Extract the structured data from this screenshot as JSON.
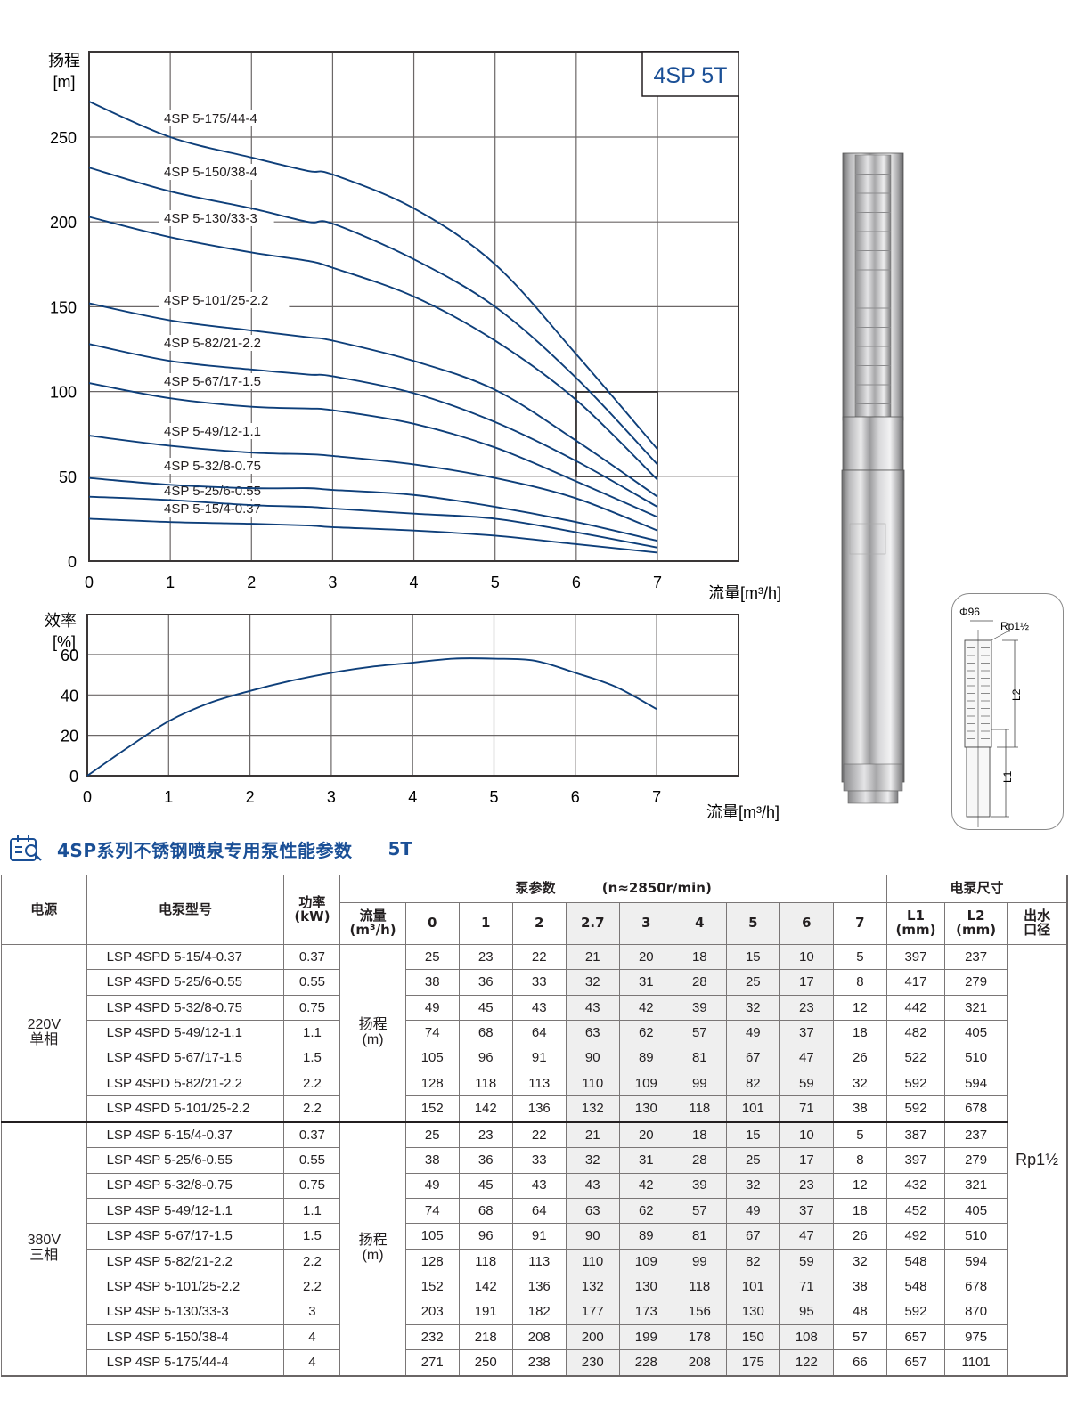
{
  "head_chart": {
    "badge": "4SP 5T",
    "ylabel_line1": "扬程",
    "ylabel_line2": "[m]",
    "xlabel": "流量[m³/h]",
    "x_ticks": [
      "0",
      "1",
      "2",
      "3",
      "4",
      "5",
      "6",
      "7"
    ],
    "y_ticks": [
      "0",
      "50",
      "100",
      "150",
      "200",
      "250"
    ],
    "curve_labels": [
      "4SP 5-175/44-4",
      "4SP 5-150/38-4",
      "4SP 5-130/33-3",
      "4SP 5-101/25-2.2",
      "4SP 5-82/21-2.2",
      "4SP 5-67/17-1.5",
      "4SP 5-49/12-1.1",
      "4SP 5-32/8-0.75",
      "4SP 5-25/6-0.55",
      "4SP 5-15/4-0.37"
    ]
  },
  "eff_chart": {
    "ylabel_line1": "效率",
    "ylabel_line2": "[%]",
    "xlabel": "流量[m³/h]",
    "x_ticks": [
      "0",
      "1",
      "2",
      "3",
      "4",
      "5",
      "6",
      "7"
    ],
    "y_ticks": [
      "0",
      "20",
      "40",
      "60"
    ]
  },
  "chart_data": [
    {
      "type": "line",
      "title": "4SP 5T",
      "xlabel": "流量[m³/h]",
      "ylabel": "扬程 [m]",
      "xlim": [
        0,
        8
      ],
      "ylim": [
        0,
        300
      ],
      "grid": true,
      "x": [
        0,
        1,
        2,
        2.7,
        3,
        4,
        5,
        6,
        7
      ],
      "series": [
        {
          "name": "4SP 5-175/44-4",
          "values": [
            271,
            250,
            238,
            230,
            228,
            208,
            175,
            122,
            66
          ]
        },
        {
          "name": "4SP 5-150/38-4",
          "values": [
            232,
            218,
            208,
            200,
            199,
            178,
            150,
            108,
            57
          ]
        },
        {
          "name": "4SP 5-130/33-3",
          "values": [
            203,
            191,
            182,
            177,
            173,
            156,
            130,
            95,
            48
          ]
        },
        {
          "name": "4SP 5-101/25-2.2",
          "values": [
            152,
            142,
            136,
            132,
            130,
            118,
            101,
            71,
            38
          ]
        },
        {
          "name": "4SP 5-82/21-2.2",
          "values": [
            128,
            118,
            113,
            110,
            109,
            99,
            82,
            59,
            32
          ]
        },
        {
          "name": "4SP 5-67/17-1.5",
          "values": [
            105,
            96,
            91,
            90,
            89,
            81,
            67,
            47,
            26
          ]
        },
        {
          "name": "4SP 5-49/12-1.1",
          "values": [
            74,
            68,
            64,
            63,
            62,
            57,
            49,
            37,
            18
          ]
        },
        {
          "name": "4SP 5-32/8-0.75",
          "values": [
            49,
            45,
            43,
            43,
            42,
            39,
            32,
            23,
            12
          ]
        },
        {
          "name": "4SP 5-25/6-0.55",
          "values": [
            38,
            36,
            33,
            32,
            31,
            28,
            25,
            17,
            8
          ]
        },
        {
          "name": "4SP 5-15/4-0.37",
          "values": [
            25,
            23,
            22,
            21,
            20,
            18,
            15,
            10,
            5
          ]
        }
      ],
      "annotations": [
        "Highlighted box: x 6–7, y 50–100"
      ]
    },
    {
      "type": "line",
      "title": "",
      "xlabel": "流量[m³/h]",
      "ylabel": "效率 [%]",
      "xlim": [
        0,
        8
      ],
      "ylim": [
        0,
        80
      ],
      "grid": true,
      "x": [
        0,
        0.5,
        1,
        1.5,
        2,
        2.5,
        3,
        3.5,
        4,
        4.5,
        5,
        5.5,
        6,
        6.5,
        7
      ],
      "series": [
        {
          "name": "效率",
          "values": [
            0,
            14,
            27,
            36,
            42,
            47,
            51,
            54,
            56,
            58,
            58,
            57,
            51,
            44,
            33
          ]
        }
      ]
    }
  ],
  "dimension_drawing": {
    "diameter": "Φ96",
    "outlet": "Rp1½",
    "l1": "L1",
    "l2": "L2"
  },
  "section": {
    "title": "4SP系列不锈钢喷泉专用泵性能参数",
    "suffix": "5T"
  },
  "table": {
    "headers": {
      "power_source": "电源",
      "model": "电泵型号",
      "power_line1": "功率",
      "power_line2": "(kW)",
      "pump_params": "泵参数",
      "speed": "(n≈2850r/min)",
      "flow_line1": "流量",
      "flow_line2": "(m³/h)",
      "flows": [
        "0",
        "1",
        "2",
        "2.7",
        "3",
        "4",
        "5",
        "6",
        "7"
      ],
      "dimensions": "电泵尺寸",
      "l1_line1": "L1",
      "l1_line2": "(mm)",
      "l2_line1": "L2",
      "l2_line2": "(mm)",
      "outlet_line1": "出水",
      "outlet_line2": "口径"
    },
    "head_label_line1": "扬程",
    "head_label_line2": "(m)",
    "outlet_value": "Rp1½",
    "groups": [
      {
        "source_line1": "220V",
        "source_line2": "单相",
        "rows": [
          {
            "model": "LSP 4SPD 5-15/4-0.37",
            "power": "0.37",
            "heads": [
              "25",
              "23",
              "22",
              "21",
              "20",
              "18",
              "15",
              "10",
              "5"
            ],
            "l1": "397",
            "l2": "237"
          },
          {
            "model": "LSP 4SPD 5-25/6-0.55",
            "power": "0.55",
            "heads": [
              "38",
              "36",
              "33",
              "32",
              "31",
              "28",
              "25",
              "17",
              "8"
            ],
            "l1": "417",
            "l2": "279"
          },
          {
            "model": "LSP 4SPD 5-32/8-0.75",
            "power": "0.75",
            "heads": [
              "49",
              "45",
              "43",
              "43",
              "42",
              "39",
              "32",
              "23",
              "12"
            ],
            "l1": "442",
            "l2": "321"
          },
          {
            "model": "LSP 4SPD 5-49/12-1.1",
            "power": "1.1",
            "heads": [
              "74",
              "68",
              "64",
              "63",
              "62",
              "57",
              "49",
              "37",
              "18"
            ],
            "l1": "482",
            "l2": "405"
          },
          {
            "model": "LSP 4SPD 5-67/17-1.5",
            "power": "1.5",
            "heads": [
              "105",
              "96",
              "91",
              "90",
              "89",
              "81",
              "67",
              "47",
              "26"
            ],
            "l1": "522",
            "l2": "510"
          },
          {
            "model": "LSP 4SPD 5-82/21-2.2",
            "power": "2.2",
            "heads": [
              "128",
              "118",
              "113",
              "110",
              "109",
              "99",
              "82",
              "59",
              "32"
            ],
            "l1": "592",
            "l2": "594"
          },
          {
            "model": "LSP 4SPD 5-101/25-2.2",
            "power": "2.2",
            "heads": [
              "152",
              "142",
              "136",
              "132",
              "130",
              "118",
              "101",
              "71",
              "38"
            ],
            "l1": "592",
            "l2": "678"
          }
        ]
      },
      {
        "source_line1": "380V",
        "source_line2": "三相",
        "rows": [
          {
            "model": "LSP 4SP 5-15/4-0.37",
            "power": "0.37",
            "heads": [
              "25",
              "23",
              "22",
              "21",
              "20",
              "18",
              "15",
              "10",
              "5"
            ],
            "l1": "387",
            "l2": "237"
          },
          {
            "model": "LSP 4SP 5-25/6-0.55",
            "power": "0.55",
            "heads": [
              "38",
              "36",
              "33",
              "32",
              "31",
              "28",
              "25",
              "17",
              "8"
            ],
            "l1": "397",
            "l2": "279"
          },
          {
            "model": "LSP 4SP 5-32/8-0.75",
            "power": "0.75",
            "heads": [
              "49",
              "45",
              "43",
              "43",
              "42",
              "39",
              "32",
              "23",
              "12"
            ],
            "l1": "432",
            "l2": "321"
          },
          {
            "model": "LSP 4SP 5-49/12-1.1",
            "power": "1.1",
            "heads": [
              "74",
              "68",
              "64",
              "63",
              "62",
              "57",
              "49",
              "37",
              "18"
            ],
            "l1": "452",
            "l2": "405"
          },
          {
            "model": "LSP 4SP 5-67/17-1.5",
            "power": "1.5",
            "heads": [
              "105",
              "96",
              "91",
              "90",
              "89",
              "81",
              "67",
              "47",
              "26"
            ],
            "l1": "492",
            "l2": "510"
          },
          {
            "model": "LSP 4SP 5-82/21-2.2",
            "power": "2.2",
            "heads": [
              "128",
              "118",
              "113",
              "110",
              "109",
              "99",
              "82",
              "59",
              "32"
            ],
            "l1": "548",
            "l2": "594"
          },
          {
            "model": "LSP 4SP 5-101/25-2.2",
            "power": "2.2",
            "heads": [
              "152",
              "142",
              "136",
              "132",
              "130",
              "118",
              "101",
              "71",
              "38"
            ],
            "l1": "548",
            "l2": "678"
          },
          {
            "model": "LSP 4SP 5-130/33-3",
            "power": "3",
            "heads": [
              "203",
              "191",
              "182",
              "177",
              "173",
              "156",
              "130",
              "95",
              "48"
            ],
            "l1": "592",
            "l2": "870"
          },
          {
            "model": "LSP 4SP 5-150/38-4",
            "power": "4",
            "heads": [
              "232",
              "218",
              "208",
              "200",
              "199",
              "178",
              "150",
              "108",
              "57"
            ],
            "l1": "657",
            "l2": "975"
          },
          {
            "model": "LSP 4SP 5-175/44-4",
            "power": "4",
            "heads": [
              "271",
              "250",
              "238",
              "230",
              "228",
              "208",
              "175",
              "122",
              "66"
            ],
            "l1": "657",
            "l2": "1101"
          }
        ]
      }
    ]
  },
  "colors": {
    "curve": "#0e3f7a",
    "title_blue": "#1a4f96",
    "grid": "#6b6767",
    "shade": "#efefef"
  }
}
